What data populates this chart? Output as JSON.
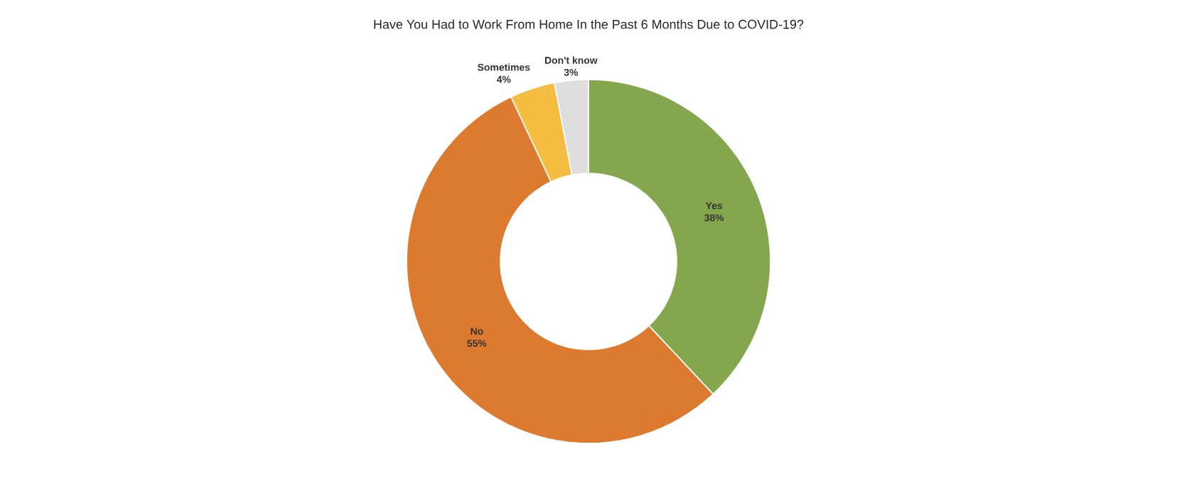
{
  "chart_data": {
    "type": "donut",
    "title": "Have You Had to Work From Home In the Past 6 Months Due to COVID-19?",
    "categories": [
      "Yes",
      "No",
      "Sometimes",
      "Don't know"
    ],
    "values": [
      38,
      55,
      4,
      3
    ],
    "value_labels": [
      "38%",
      "55%",
      "4%",
      "3%"
    ],
    "colors": [
      "#84a64c",
      "#dc7a2f",
      "#f5bd41",
      "#dedede"
    ]
  }
}
